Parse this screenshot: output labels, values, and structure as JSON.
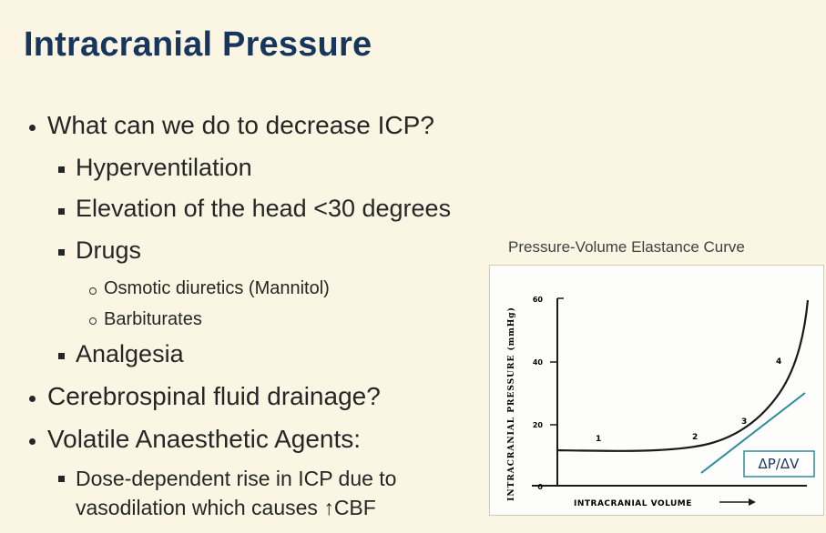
{
  "slide": {
    "title": "Intracranial Pressure",
    "bullets": {
      "q": "What can we do to decrease ICP?",
      "hyper": "Hyperventilation",
      "elev": "Elevation of the head <30 degrees",
      "drugs": "Drugs",
      "osm": "Osmotic diuretics (Mannitol)",
      "barb": "Barbiturates",
      "analg": "Analgesia",
      "csf": "Cerebrospinal fluid drainage?",
      "vol": "Volatile Anaesthetic Agents:",
      "dose1": "Dose-dependent rise in ICP due to",
      "dose2": "vasodilation which causes ↑CBF"
    }
  },
  "chart_data": {
    "type": "line",
    "title": "Pressure-Volume Elastance Curve",
    "xlabel": "INTRACRANIAL VOLUME",
    "ylabel": "INTRACRANIAL PRESSURE (mmHg)",
    "ylim": [
      0,
      60
    ],
    "yticks": [
      "60",
      "40",
      "20",
      "0"
    ],
    "region_labels": [
      "1",
      "2",
      "3",
      "4"
    ],
    "annotation": "ΔP/ΔV",
    "colors": {
      "curve": "#1a1a1a",
      "tangent": "#2e8b9b",
      "title_text": "#17365d"
    }
  }
}
